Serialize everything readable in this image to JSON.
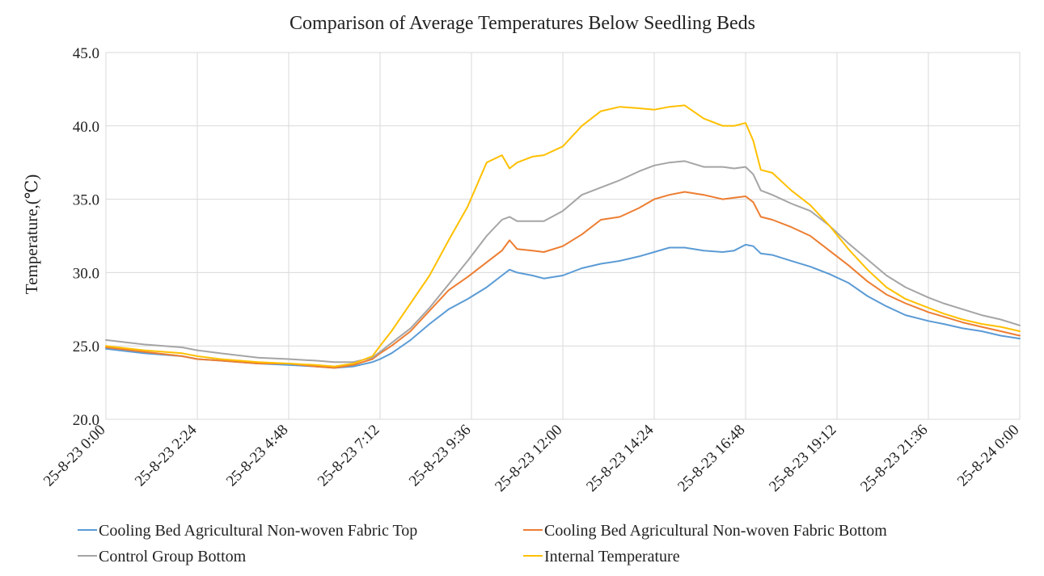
{
  "chart_data": {
    "type": "line",
    "title": "Comparison of Average Temperatures Below Seedling Beds",
    "ylabel": "Temperature,(℃)",
    "xlabel": "",
    "ylim": [
      20,
      45
    ],
    "yticks": [
      "20.0",
      "25.0",
      "30.0",
      "35.0",
      "40.0",
      "45.0"
    ],
    "xlim_hours": [
      0,
      24
    ],
    "xticks": [
      {
        "hour": 0,
        "label": "25-8-23 0:00"
      },
      {
        "hour": 2.4,
        "label": "25-8-23 2:24"
      },
      {
        "hour": 4.8,
        "label": "25-8-23 4:48"
      },
      {
        "hour": 7.2,
        "label": "25-8-23 7:12"
      },
      {
        "hour": 9.6,
        "label": "25-8-23 9:36"
      },
      {
        "hour": 12,
        "label": "25-8-23 12:00"
      },
      {
        "hour": 14.4,
        "label": "25-8-23 14:24"
      },
      {
        "hour": 16.8,
        "label": "25-8-23 16:48"
      },
      {
        "hour": 19.2,
        "label": "25-8-23 19:12"
      },
      {
        "hour": 21.6,
        "label": "25-8-23 21:36"
      },
      {
        "hour": 24,
        "label": "25-8-24 0:00"
      }
    ],
    "grid": "vertical-and-horizontal",
    "legend_position": "bottom",
    "series": [
      {
        "name": "Cooling Bed Agricultural Non-woven Fabric Top",
        "color": "#5b9bd5",
        "points": [
          [
            0,
            24.8
          ],
          [
            1,
            24.5
          ],
          [
            2,
            24.3
          ],
          [
            2.4,
            24.1
          ],
          [
            3,
            24.0
          ],
          [
            4,
            23.8
          ],
          [
            4.8,
            23.7
          ],
          [
            5.5,
            23.6
          ],
          [
            6,
            23.5
          ],
          [
            6.5,
            23.6
          ],
          [
            7,
            23.9
          ],
          [
            7.2,
            24.1
          ],
          [
            7.5,
            24.5
          ],
          [
            8,
            25.4
          ],
          [
            8.5,
            26.5
          ],
          [
            9,
            27.5
          ],
          [
            9.5,
            28.2
          ],
          [
            10,
            29.0
          ],
          [
            10.4,
            29.8
          ],
          [
            10.6,
            30.2
          ],
          [
            10.8,
            30.0
          ],
          [
            11.2,
            29.8
          ],
          [
            11.5,
            29.6
          ],
          [
            12,
            29.8
          ],
          [
            12.5,
            30.3
          ],
          [
            13,
            30.6
          ],
          [
            13.5,
            30.8
          ],
          [
            14,
            31.1
          ],
          [
            14.4,
            31.4
          ],
          [
            14.8,
            31.7
          ],
          [
            15.2,
            31.7
          ],
          [
            15.7,
            31.5
          ],
          [
            16.2,
            31.4
          ],
          [
            16.5,
            31.5
          ],
          [
            16.8,
            31.9
          ],
          [
            17,
            31.8
          ],
          [
            17.2,
            31.3
          ],
          [
            17.5,
            31.2
          ],
          [
            18,
            30.8
          ],
          [
            18.5,
            30.4
          ],
          [
            19,
            29.9
          ],
          [
            19.5,
            29.3
          ],
          [
            20,
            28.4
          ],
          [
            20.5,
            27.7
          ],
          [
            21,
            27.1
          ],
          [
            21.6,
            26.7
          ],
          [
            22,
            26.5
          ],
          [
            22.5,
            26.2
          ],
          [
            23,
            26.0
          ],
          [
            23.5,
            25.7
          ],
          [
            24,
            25.5
          ]
        ]
      },
      {
        "name": "Cooling Bed Agricultural Non-woven Fabric Bottom",
        "color": "#ed7d31",
        "points": [
          [
            0,
            24.9
          ],
          [
            1,
            24.6
          ],
          [
            2,
            24.3
          ],
          [
            2.4,
            24.1
          ],
          [
            3,
            24.0
          ],
          [
            4,
            23.8
          ],
          [
            4.8,
            23.8
          ],
          [
            5.5,
            23.6
          ],
          [
            6,
            23.5
          ],
          [
            6.5,
            23.7
          ],
          [
            7,
            24.1
          ],
          [
            7.2,
            24.5
          ],
          [
            7.5,
            25.0
          ],
          [
            8,
            26.0
          ],
          [
            8.5,
            27.4
          ],
          [
            9,
            28.8
          ],
          [
            9.5,
            29.7
          ],
          [
            10,
            30.7
          ],
          [
            10.4,
            31.5
          ],
          [
            10.6,
            32.2
          ],
          [
            10.8,
            31.6
          ],
          [
            11.2,
            31.5
          ],
          [
            11.5,
            31.4
          ],
          [
            12,
            31.8
          ],
          [
            12.5,
            32.6
          ],
          [
            13,
            33.6
          ],
          [
            13.5,
            33.8
          ],
          [
            14,
            34.4
          ],
          [
            14.4,
            35.0
          ],
          [
            14.8,
            35.3
          ],
          [
            15.2,
            35.5
          ],
          [
            15.7,
            35.3
          ],
          [
            16.2,
            35.0
          ],
          [
            16.5,
            35.1
          ],
          [
            16.8,
            35.2
          ],
          [
            17,
            34.8
          ],
          [
            17.2,
            33.8
          ],
          [
            17.5,
            33.6
          ],
          [
            18,
            33.1
          ],
          [
            18.5,
            32.5
          ],
          [
            19,
            31.5
          ],
          [
            19.5,
            30.5
          ],
          [
            20,
            29.4
          ],
          [
            20.5,
            28.5
          ],
          [
            21,
            27.9
          ],
          [
            21.6,
            27.3
          ],
          [
            22,
            27.0
          ],
          [
            22.5,
            26.6
          ],
          [
            23,
            26.3
          ],
          [
            23.5,
            26.0
          ],
          [
            24,
            25.7
          ]
        ]
      },
      {
        "name": "Control Group Bottom",
        "color": "#a5a5a5",
        "points": [
          [
            0,
            25.4
          ],
          [
            1,
            25.1
          ],
          [
            2,
            24.9
          ],
          [
            2.4,
            24.7
          ],
          [
            3,
            24.5
          ],
          [
            4,
            24.2
          ],
          [
            4.8,
            24.1
          ],
          [
            5.5,
            24.0
          ],
          [
            6,
            23.9
          ],
          [
            6.5,
            23.9
          ],
          [
            7,
            24.2
          ],
          [
            7.2,
            24.6
          ],
          [
            7.5,
            25.2
          ],
          [
            8,
            26.2
          ],
          [
            8.5,
            27.6
          ],
          [
            9,
            29.2
          ],
          [
            9.5,
            30.8
          ],
          [
            10,
            32.5
          ],
          [
            10.4,
            33.6
          ],
          [
            10.6,
            33.8
          ],
          [
            10.8,
            33.5
          ],
          [
            11.2,
            33.5
          ],
          [
            11.5,
            33.5
          ],
          [
            12,
            34.2
          ],
          [
            12.5,
            35.3
          ],
          [
            13,
            35.8
          ],
          [
            13.5,
            36.3
          ],
          [
            14,
            36.9
          ],
          [
            14.4,
            37.3
          ],
          [
            14.8,
            37.5
          ],
          [
            15.2,
            37.6
          ],
          [
            15.7,
            37.2
          ],
          [
            16.2,
            37.2
          ],
          [
            16.5,
            37.1
          ],
          [
            16.8,
            37.2
          ],
          [
            17,
            36.7
          ],
          [
            17.2,
            35.6
          ],
          [
            17.5,
            35.3
          ],
          [
            18,
            34.7
          ],
          [
            18.5,
            34.2
          ],
          [
            19,
            33.2
          ],
          [
            19.5,
            32.0
          ],
          [
            20,
            30.9
          ],
          [
            20.5,
            29.8
          ],
          [
            21,
            29.0
          ],
          [
            21.6,
            28.3
          ],
          [
            22,
            27.9
          ],
          [
            22.5,
            27.5
          ],
          [
            23,
            27.1
          ],
          [
            23.5,
            26.8
          ],
          [
            24,
            26.4
          ]
        ]
      },
      {
        "name": "Internal Temperature",
        "color": "#ffc000",
        "points": [
          [
            0,
            25.0
          ],
          [
            1,
            24.7
          ],
          [
            2,
            24.5
          ],
          [
            2.4,
            24.3
          ],
          [
            3,
            24.1
          ],
          [
            4,
            23.9
          ],
          [
            4.8,
            23.8
          ],
          [
            5.5,
            23.7
          ],
          [
            6,
            23.6
          ],
          [
            6.5,
            23.8
          ],
          [
            7,
            24.3
          ],
          [
            7.2,
            25.0
          ],
          [
            7.5,
            26.0
          ],
          [
            8,
            27.9
          ],
          [
            8.5,
            29.8
          ],
          [
            9,
            32.2
          ],
          [
            9.5,
            34.5
          ],
          [
            10,
            37.5
          ],
          [
            10.4,
            38.0
          ],
          [
            10.6,
            37.1
          ],
          [
            10.8,
            37.5
          ],
          [
            11.2,
            37.9
          ],
          [
            11.5,
            38.0
          ],
          [
            12,
            38.6
          ],
          [
            12.5,
            40.0
          ],
          [
            13,
            41.0
          ],
          [
            13.5,
            41.3
          ],
          [
            14,
            41.2
          ],
          [
            14.4,
            41.1
          ],
          [
            14.8,
            41.3
          ],
          [
            15.2,
            41.4
          ],
          [
            15.7,
            40.5
          ],
          [
            16.2,
            40.0
          ],
          [
            16.5,
            40.0
          ],
          [
            16.8,
            40.2
          ],
          [
            17,
            39.0
          ],
          [
            17.2,
            37.0
          ],
          [
            17.5,
            36.8
          ],
          [
            18,
            35.6
          ],
          [
            18.5,
            34.6
          ],
          [
            19,
            33.2
          ],
          [
            19.5,
            31.6
          ],
          [
            20,
            30.2
          ],
          [
            20.5,
            29.0
          ],
          [
            21,
            28.2
          ],
          [
            21.6,
            27.6
          ],
          [
            22,
            27.2
          ],
          [
            22.5,
            26.8
          ],
          [
            23,
            26.5
          ],
          [
            23.5,
            26.3
          ],
          [
            24,
            26.0
          ]
        ]
      }
    ]
  }
}
